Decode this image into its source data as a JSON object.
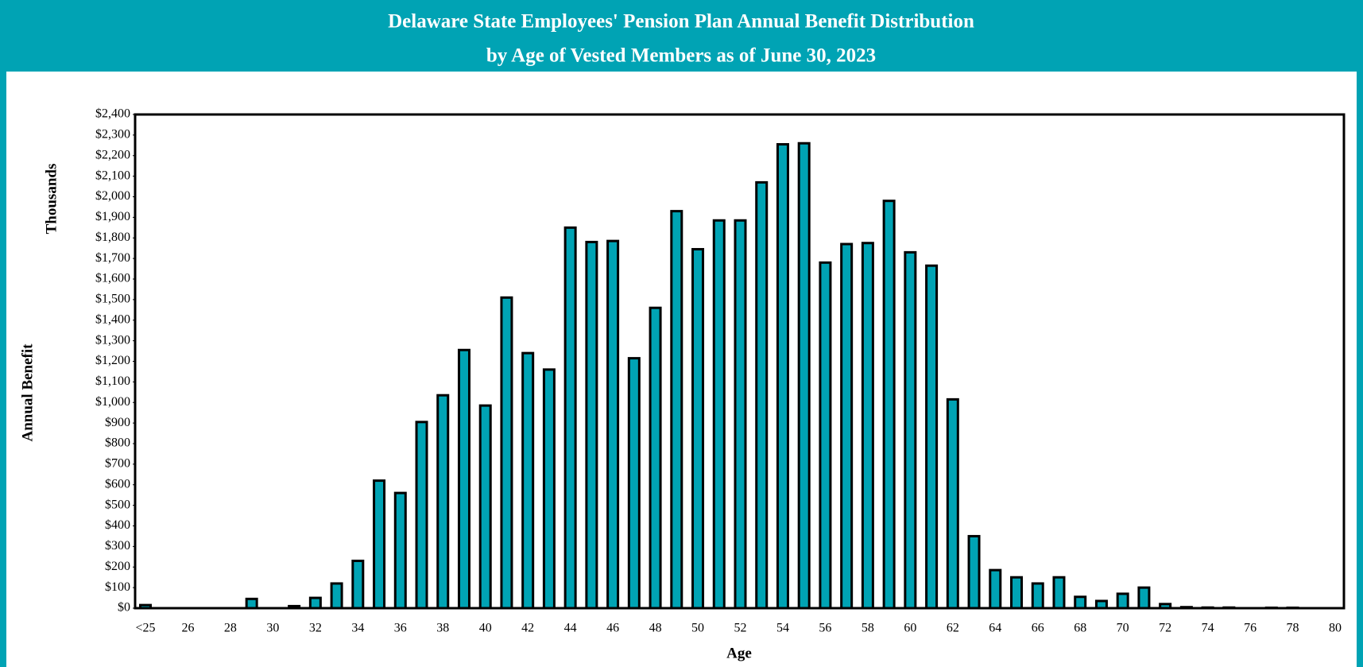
{
  "chart_data": {
    "type": "bar",
    "title": [
      "Delaware State Employees' Pension Plan Annual Benefit Distribution",
      "by Age of Vested Members as of June 30, 2023"
    ],
    "y_label": "Annual Benefit",
    "y_unit_label": "Thousands",
    "x_label": "Age",
    "color": "#00a3b4",
    "grid": false,
    "categories": [
      "<25",
      null,
      "26",
      null,
      "28",
      null,
      "30",
      null,
      "32",
      null,
      "34",
      null,
      "36",
      null,
      "38",
      null,
      "40",
      null,
      "42",
      null,
      "44",
      null,
      "46",
      null,
      "48",
      null,
      "50",
      null,
      "52",
      null,
      "54",
      null,
      "56",
      null,
      "58",
      null,
      "60",
      null,
      "62",
      null,
      "64",
      null,
      "66",
      null,
      "68",
      null,
      "70",
      null,
      "72",
      null,
      "74",
      null,
      "76",
      null,
      "78",
      null,
      "80"
    ],
    "values": [
      15,
      0,
      0,
      0,
      0,
      45,
      0,
      10,
      50,
      120,
      230,
      620,
      560,
      905,
      1035,
      1255,
      985,
      1510,
      1240,
      1160,
      1850,
      1780,
      1785,
      1215,
      1460,
      1930,
      1745,
      1885,
      1885,
      2070,
      2255,
      2260,
      1680,
      1770,
      1775,
      1980,
      1730,
      1665,
      1015,
      350,
      185,
      150,
      120,
      150,
      55,
      35,
      70,
      100,
      20,
      5,
      3,
      3,
      0,
      2,
      2,
      0,
      0
    ],
    "ylim": [
      0,
      2400
    ],
    "yticks": [
      {
        "value": 0,
        "label": "$0"
      },
      {
        "value": 100,
        "label": "$100"
      },
      {
        "value": 200,
        "label": "$200"
      },
      {
        "value": 300,
        "label": "$300"
      },
      {
        "value": 400,
        "label": "$400"
      },
      {
        "value": 500,
        "label": "$500"
      },
      {
        "value": 600,
        "label": "$600"
      },
      {
        "value": 700,
        "label": "$700"
      },
      {
        "value": 800,
        "label": "$800"
      },
      {
        "value": 900,
        "label": "$900"
      },
      {
        "value": 1000,
        "label": "$1,000"
      },
      {
        "value": 1100,
        "label": "$1,100"
      },
      {
        "value": 1200,
        "label": "$1,200"
      },
      {
        "value": 1300,
        "label": "$1,300"
      },
      {
        "value": 1400,
        "label": "$1,400"
      },
      {
        "value": 1500,
        "label": "$1,500"
      },
      {
        "value": 1600,
        "label": "$1,600"
      },
      {
        "value": 1700,
        "label": "$1,700"
      },
      {
        "value": 1800,
        "label": "$1,800"
      },
      {
        "value": 1900,
        "label": "$1,900"
      },
      {
        "value": 2000,
        "label": "$2,000"
      },
      {
        "value": 2100,
        "label": "$2,100"
      },
      {
        "value": 2200,
        "label": "$2,200"
      },
      {
        "value": 2300,
        "label": "$2,300"
      },
      {
        "value": 2400,
        "label": "$2,400"
      }
    ]
  }
}
